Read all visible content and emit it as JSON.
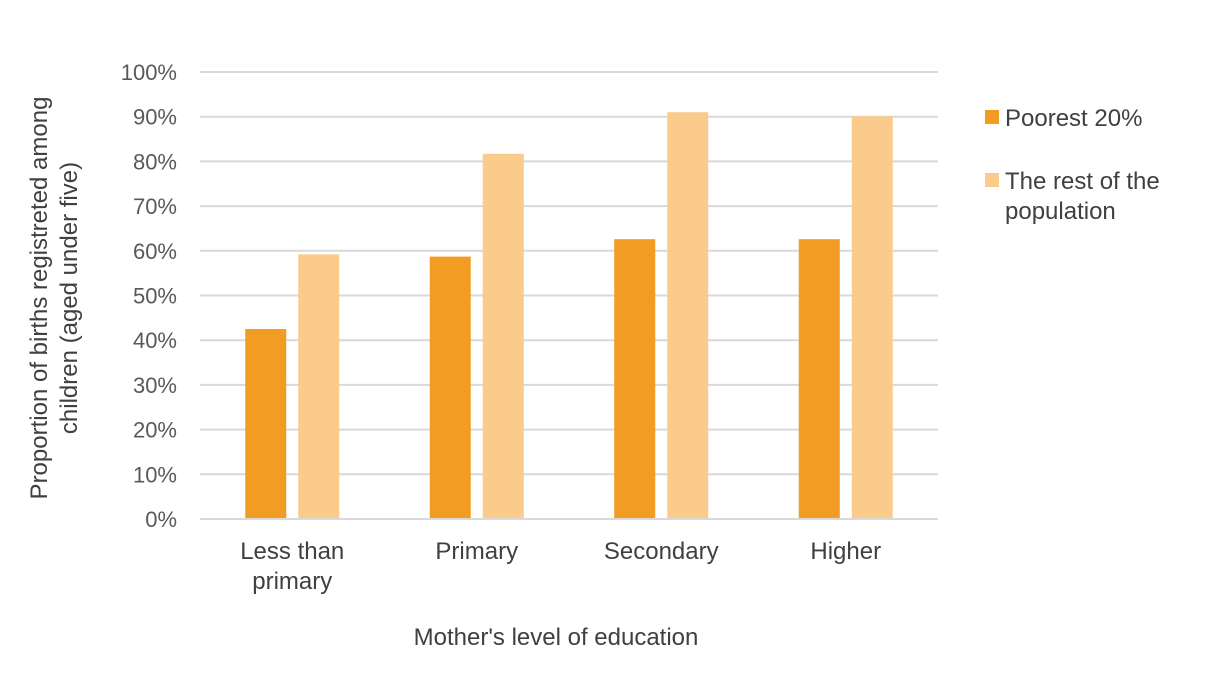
{
  "chart_data": {
    "type": "bar",
    "title": "",
    "xlabel": "Mother's level of education",
    "ylabel_lines": [
      "Proportion of births registreted among",
      "children (aged under five)"
    ],
    "categories": [
      [
        "Less than",
        "primary"
      ],
      [
        "Primary"
      ],
      [
        "Secondary"
      ],
      [
        "Higher"
      ]
    ],
    "yticks": [
      "0%",
      "10%",
      "20%",
      "30%",
      "40%",
      "50%",
      "60%",
      "70%",
      "80%",
      "90%",
      "100%"
    ],
    "ylim": [
      0,
      1
    ],
    "grid": true,
    "legend_position": "right",
    "series": [
      {
        "name": "Poorest 20%",
        "legend_lines": [
          "Poorest 20%"
        ],
        "color": "#F39C23",
        "values": [
          0.425,
          0.587,
          0.626,
          0.626
        ]
      },
      {
        "name": "The rest of the population",
        "legend_lines": [
          "The rest of the",
          "population"
        ],
        "color": "#FBCB8C",
        "values": [
          0.592,
          0.817,
          0.91,
          0.901
        ]
      }
    ]
  }
}
